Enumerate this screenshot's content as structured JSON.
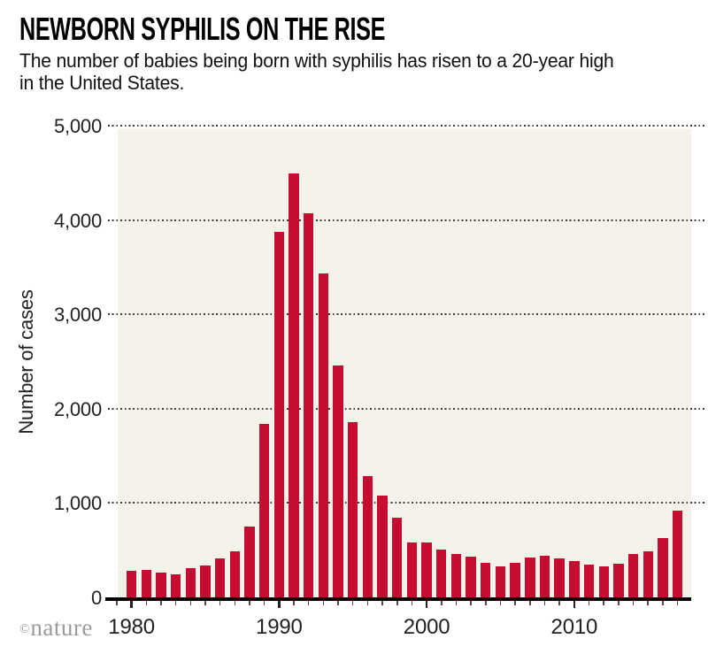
{
  "header": {
    "title": "NEWBORN SYPHILIS ON THE RISE",
    "subtitle_lines": [
      "The number of babies being born with syphilis has risen to a 20-year high",
      "in the United States."
    ]
  },
  "footer": {
    "copyright_symbol": "©",
    "brand": "nature"
  },
  "chart_data": {
    "type": "bar",
    "title": "NEWBORN SYPHILIS ON THE RISE",
    "subtitle": "The number of babies being born with syphilis has risen to a 20-year high in the United States.",
    "xlabel": "",
    "ylabel": "Number of cases",
    "ylim": [
      0,
      5000
    ],
    "yticks": [
      0,
      1000,
      2000,
      3000,
      4000,
      5000
    ],
    "ytick_labels": [
      "0",
      "1,000",
      "2,000",
      "3,000",
      "4,000",
      "5,000"
    ],
    "xticks_labeled": [
      1980,
      1990,
      2000,
      2010
    ],
    "xtick_labels": [
      "1980",
      "1990",
      "2000",
      "2010"
    ],
    "grid": "horizontal-dotted",
    "legend_position": "none",
    "plot_background_color": "#f4f2e9",
    "bar_color": "#c60c30",
    "x": [
      1980,
      1981,
      1982,
      1983,
      1984,
      1985,
      1986,
      1987,
      1988,
      1989,
      1990,
      1991,
      1992,
      1993,
      1994,
      1995,
      1996,
      1997,
      1998,
      1999,
      2000,
      2001,
      2002,
      2003,
      2004,
      2005,
      2006,
      2007,
      2008,
      2009,
      2010,
      2011,
      2012,
      2013,
      2014,
      2015,
      2016,
      2017
    ],
    "values": [
      277,
      290,
      265,
      240,
      305,
      340,
      410,
      485,
      750,
      1835,
      3870,
      4490,
      4075,
      3430,
      2455,
      1860,
      1285,
      1080,
      845,
      580,
      585,
      505,
      455,
      430,
      365,
      325,
      365,
      420,
      440,
      415,
      385,
      350,
      325,
      355,
      460,
      490,
      630,
      918
    ]
  }
}
